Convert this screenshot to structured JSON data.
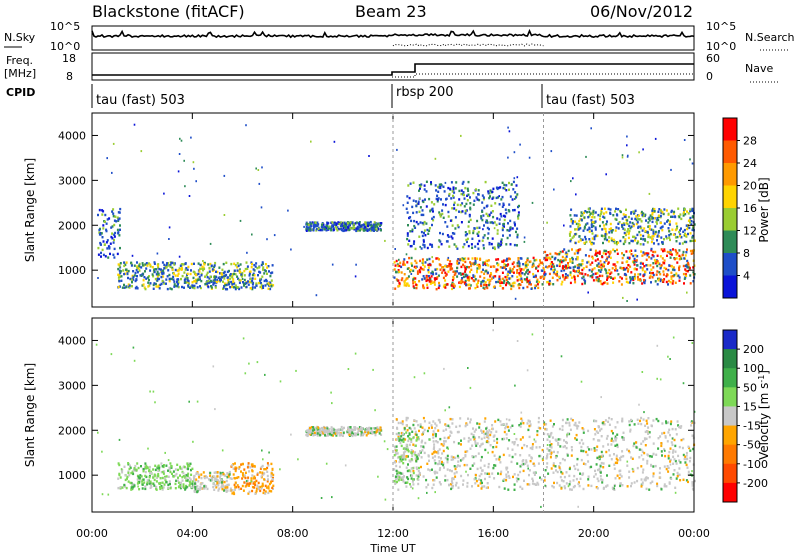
{
  "header": {
    "station": "Blackstone (fitACF)",
    "beam": "Beam 23",
    "date": "06/Nov/2012"
  },
  "noise_panel": {
    "left_label": "N.Sky",
    "right_label": "N.Search",
    "left_ticks": [
      "10^5",
      "10^0"
    ],
    "right_ticks": [
      "10^5",
      "10^0"
    ]
  },
  "freq_panel": {
    "left_label_1": "Freq.",
    "left_label_2": "[MHz]",
    "right_label": "Nave",
    "left_ticks": [
      "18",
      "8"
    ],
    "right_ticks": [
      "60",
      "0"
    ]
  },
  "cpid": {
    "label": "CPID",
    "segments": [
      {
        "name": "tau (fast) 503",
        "start_hour": 0
      },
      {
        "name": "rbsp 200",
        "start_hour": 12
      },
      {
        "name": "tau (fast) 503",
        "start_hour": 18
      }
    ]
  },
  "power_colorbar": {
    "label": "Power [dB]",
    "ticks": [
      "28",
      "24",
      "20",
      "16",
      "12",
      "8",
      "4"
    ],
    "colors": [
      "#ff0000",
      "#ff5a00",
      "#ff9a00",
      "#ffd400",
      "#9acd32",
      "#2e8b57",
      "#1e4ec8",
      "#0a14d8"
    ]
  },
  "velocity_colorbar": {
    "label": "Velocity [m s",
    "label_sup": "-1",
    "label_end": "]",
    "ticks": [
      "200",
      "100",
      "50",
      "15",
      "-15",
      "-50",
      "-100",
      "-200"
    ],
    "colors": [
      "#1a2ac8",
      "#2a8a44",
      "#3fb04a",
      "#7ed957",
      "#c8c8c8",
      "#ffa500",
      "#ff7a00",
      "#ff4a00",
      "#ff0000"
    ]
  },
  "chart_data": [
    {
      "type": "heatmap",
      "title": "Power",
      "xlabel": "Time UT",
      "ylabel": "Slant Range [km]",
      "xlim": [
        0,
        24
      ],
      "ylim": [
        180,
        4500
      ],
      "yticks": [
        "1000",
        "2000",
        "3000",
        "4000"
      ],
      "xticks": [
        "00:00",
        "04:00",
        "08:00",
        "12:00",
        "16:00",
        "20:00",
        "00:00"
      ],
      "scatter_regions": [
        {
          "t": [
            0.2,
            1.1
          ],
          "r": [
            1300,
            2400
          ],
          "level": "low"
        },
        {
          "t": [
            1.0,
            7.2
          ],
          "r": [
            600,
            1200
          ],
          "level": "mid"
        },
        {
          "t": [
            8.5,
            11.5
          ],
          "r": [
            1900,
            2100
          ],
          "level": "low"
        },
        {
          "t": [
            12.0,
            18.0
          ],
          "r": [
            600,
            1300
          ],
          "level": "high"
        },
        {
          "t": [
            12.5,
            17.0
          ],
          "r": [
            1500,
            3000
          ],
          "level": "low"
        },
        {
          "t": [
            18.0,
            24.0
          ],
          "r": [
            700,
            1500
          ],
          "level": "high"
        },
        {
          "t": [
            19.0,
            24.0
          ],
          "r": [
            1600,
            2400
          ],
          "level": "mid"
        }
      ]
    },
    {
      "type": "heatmap",
      "title": "Velocity",
      "xlabel": "Time UT",
      "ylabel": "Slant Range [km]",
      "xlim": [
        0,
        24
      ],
      "ylim": [
        180,
        4500
      ],
      "yticks": [
        "1000",
        "2000",
        "3000",
        "4000"
      ],
      "xticks": [
        "00:00",
        "04:00",
        "08:00",
        "12:00",
        "16:00",
        "20:00",
        "00:00"
      ],
      "scatter_regions": [
        {
          "t": [
            1.0,
            4.0
          ],
          "r": [
            700,
            1300
          ],
          "level": "green"
        },
        {
          "t": [
            4.0,
            5.5
          ],
          "r": [
            650,
            1100
          ],
          "level": "grey"
        },
        {
          "t": [
            5.5,
            7.2
          ],
          "r": [
            600,
            1300
          ],
          "level": "orange"
        },
        {
          "t": [
            8.5,
            11.5
          ],
          "r": [
            1900,
            2100
          ],
          "level": "grey"
        },
        {
          "t": [
            12.0,
            24.0
          ],
          "r": [
            700,
            2300
          ],
          "level": "grey"
        },
        {
          "t": [
            12.0,
            13.0
          ],
          "r": [
            800,
            2000
          ],
          "level": "green"
        }
      ]
    }
  ],
  "x_axis_title": "Time UT"
}
